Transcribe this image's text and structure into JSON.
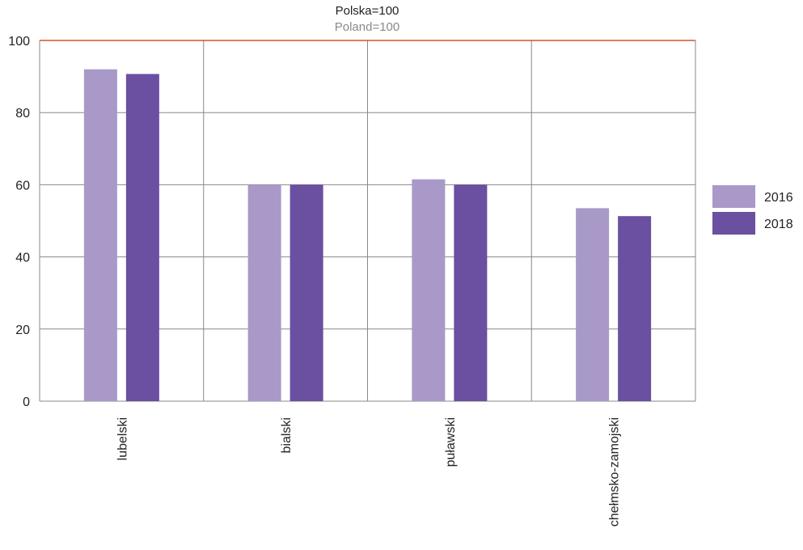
{
  "chart_data": {
    "type": "bar",
    "title": "Polska=100",
    "subtitle": "Poland=100",
    "categories": [
      "lubelski",
      "bialski",
      "puławski",
      "chełmsko-zamojski"
    ],
    "series": [
      {
        "name": "2016",
        "values": [
          92.0,
          60.0,
          61.5,
          53.5
        ]
      },
      {
        "name": "2018",
        "values": [
          90.7,
          60.0,
          60.0,
          51.3
        ]
      }
    ],
    "ylim": [
      0,
      100
    ],
    "yticks": [
      0,
      20,
      40,
      60,
      80,
      100
    ],
    "reference_line": 100,
    "grid": true,
    "legend_position": "right"
  },
  "colors": {
    "series": [
      "#a899c8",
      "#6b4fa0"
    ],
    "grid": "#888888",
    "reference_line": "#d9502a",
    "subtitle": "#8a8a8a"
  }
}
